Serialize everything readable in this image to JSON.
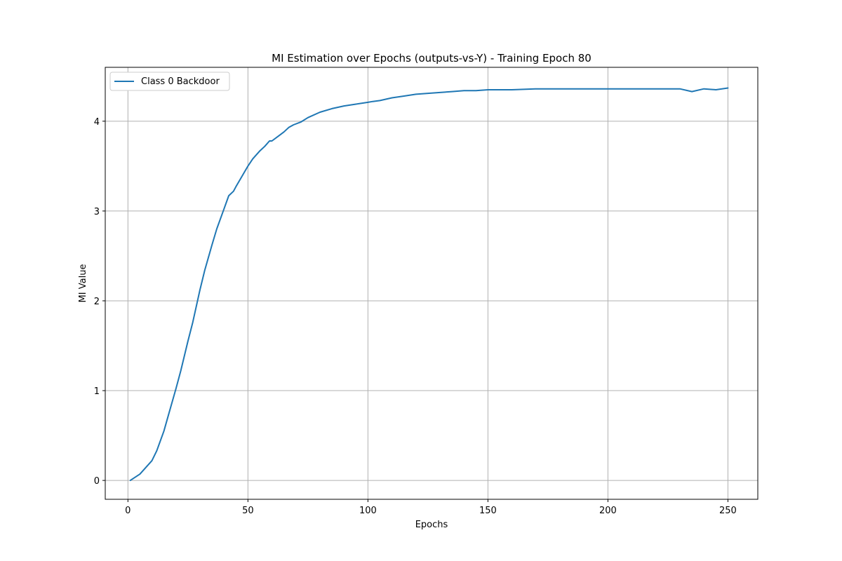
{
  "chart_data": {
    "type": "line",
    "title": "MI Estimation over Epochs (outputs-vs-Y) - Training Epoch 80",
    "xlabel": "Epochs",
    "ylabel": "MI Value",
    "xlim": [
      -9.45,
      262.45
    ],
    "ylim": [
      -0.21,
      4.6
    ],
    "xticks": [
      0,
      50,
      100,
      150,
      200,
      250
    ],
    "yticks": [
      0,
      1,
      2,
      3,
      4
    ],
    "grid": true,
    "legend_position": "top-left",
    "series": [
      {
        "name": "Class 0 Backdoor",
        "color": "#1f77b4",
        "x": [
          1,
          5,
          10,
          12,
          15,
          17,
          20,
          22,
          25,
          27,
          30,
          32,
          35,
          37,
          40,
          42,
          44,
          45,
          50,
          52,
          55,
          57,
          59,
          60,
          63,
          65,
          67,
          69,
          72,
          75,
          80,
          85,
          90,
          95,
          100,
          102,
          105,
          110,
          115,
          120,
          125,
          130,
          135,
          140,
          145,
          150,
          160,
          170,
          180,
          190,
          200,
          210,
          220,
          230,
          235,
          240,
          245,
          250
        ],
        "y": [
          0.0,
          0.07,
          0.22,
          0.33,
          0.55,
          0.74,
          1.02,
          1.22,
          1.55,
          1.76,
          2.12,
          2.34,
          2.62,
          2.8,
          3.02,
          3.17,
          3.22,
          3.27,
          3.5,
          3.58,
          3.67,
          3.72,
          3.78,
          3.78,
          3.84,
          3.88,
          3.93,
          3.96,
          3.99,
          4.04,
          4.1,
          4.14,
          4.17,
          4.19,
          4.21,
          4.22,
          4.23,
          4.26,
          4.28,
          4.3,
          4.31,
          4.32,
          4.33,
          4.34,
          4.34,
          4.35,
          4.35,
          4.36,
          4.36,
          4.36,
          4.36,
          4.36,
          4.36,
          4.36,
          4.33,
          4.36,
          4.35,
          4.37
        ]
      }
    ]
  }
}
